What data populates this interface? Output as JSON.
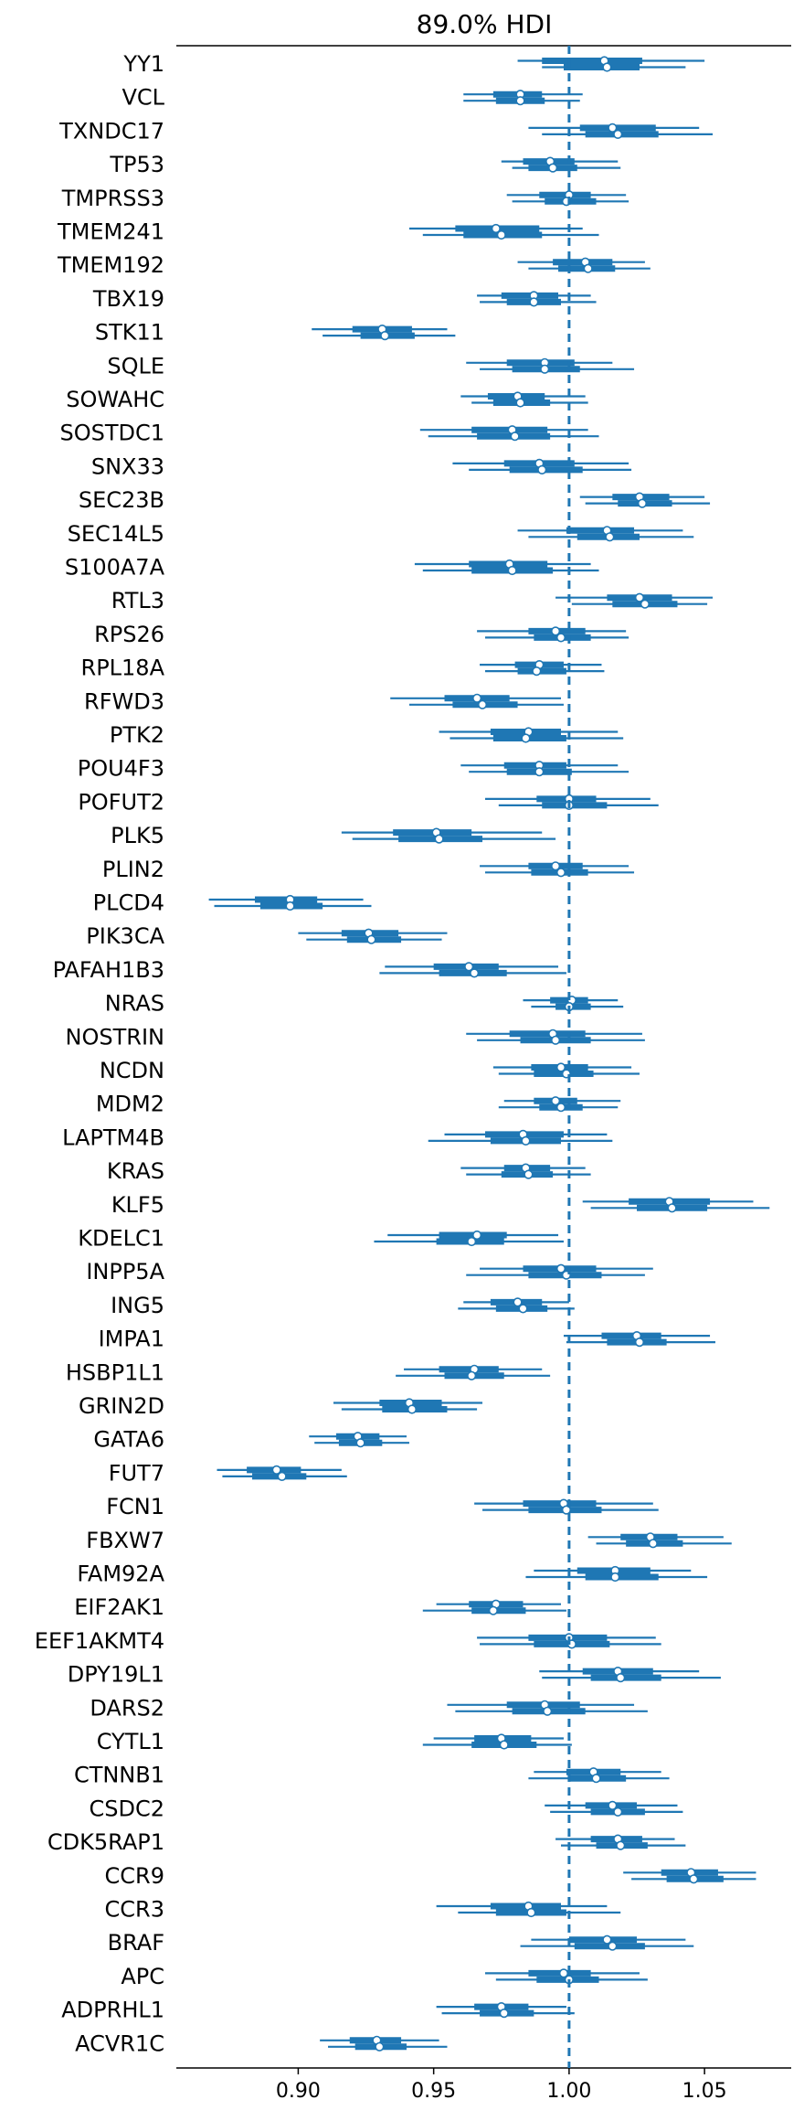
{
  "chart_data": {
    "type": "forest",
    "title": "89.0% HDI",
    "xlim": [
      0.855,
      1.082
    ],
    "xticks": [
      "0.90",
      "0.95",
      "1.00",
      "1.05"
    ],
    "reference_line": 1.0,
    "color": "#1f77b4",
    "rows": [
      {
        "label": "YY1",
        "chains": [
          [
            0.981,
            0.99,
            1.013,
            1.027,
            1.05
          ],
          [
            0.99,
            0.998,
            1.014,
            1.026,
            1.043
          ]
        ]
      },
      {
        "label": "VCL",
        "chains": [
          [
            0.961,
            0.972,
            0.982,
            0.99,
            1.005
          ],
          [
            0.961,
            0.973,
            0.982,
            0.991,
            1.004
          ]
        ]
      },
      {
        "label": "TXNDC17",
        "chains": [
          [
            0.985,
            1.004,
            1.016,
            1.032,
            1.048
          ],
          [
            0.99,
            1.006,
            1.018,
            1.033,
            1.053
          ]
        ]
      },
      {
        "label": "TP53",
        "chains": [
          [
            0.975,
            0.983,
            0.993,
            1.002,
            1.018
          ],
          [
            0.979,
            0.985,
            0.994,
            1.003,
            1.019
          ]
        ]
      },
      {
        "label": "TMPRSS3",
        "chains": [
          [
            0.977,
            0.989,
            1.0,
            1.008,
            1.021
          ],
          [
            0.979,
            0.991,
            0.999,
            1.01,
            1.022
          ]
        ]
      },
      {
        "label": "TMEM241",
        "chains": [
          [
            0.941,
            0.958,
            0.973,
            0.989,
            1.005
          ],
          [
            0.946,
            0.961,
            0.975,
            0.99,
            1.011
          ]
        ]
      },
      {
        "label": "TMEM192",
        "chains": [
          [
            0.981,
            0.994,
            1.006,
            1.016,
            1.028
          ],
          [
            0.985,
            0.996,
            1.007,
            1.017,
            1.03
          ]
        ]
      },
      {
        "label": "TBX19",
        "chains": [
          [
            0.966,
            0.975,
            0.987,
            0.996,
            1.008
          ],
          [
            0.967,
            0.977,
            0.987,
            0.997,
            1.01
          ]
        ]
      },
      {
        "label": "STK11",
        "chains": [
          [
            0.905,
            0.92,
            0.931,
            0.942,
            0.955
          ],
          [
            0.909,
            0.923,
            0.932,
            0.943,
            0.958
          ]
        ]
      },
      {
        "label": "SQLE",
        "chains": [
          [
            0.962,
            0.977,
            0.991,
            1.002,
            1.016
          ],
          [
            0.967,
            0.979,
            0.991,
            1.004,
            1.024
          ]
        ]
      },
      {
        "label": "SOWAHC",
        "chains": [
          [
            0.96,
            0.97,
            0.981,
            0.991,
            1.006
          ],
          [
            0.964,
            0.972,
            0.982,
            0.993,
            1.007
          ]
        ]
      },
      {
        "label": "SOSTDC1",
        "chains": [
          [
            0.945,
            0.964,
            0.979,
            0.992,
            1.007
          ],
          [
            0.948,
            0.966,
            0.98,
            0.993,
            1.011
          ]
        ]
      },
      {
        "label": "SNX33",
        "chains": [
          [
            0.957,
            0.976,
            0.989,
            1.002,
            1.022
          ],
          [
            0.963,
            0.978,
            0.99,
            1.005,
            1.023
          ]
        ]
      },
      {
        "label": "SEC23B",
        "chains": [
          [
            1.004,
            1.016,
            1.026,
            1.037,
            1.05
          ],
          [
            1.006,
            1.018,
            1.027,
            1.038,
            1.052
          ]
        ]
      },
      {
        "label": "SEC14L5",
        "chains": [
          [
            0.981,
            0.999,
            1.014,
            1.024,
            1.042
          ],
          [
            0.985,
            1.003,
            1.015,
            1.026,
            1.046
          ]
        ]
      },
      {
        "label": "S100A7A",
        "chains": [
          [
            0.943,
            0.963,
            0.978,
            0.992,
            1.008
          ],
          [
            0.946,
            0.964,
            0.979,
            0.994,
            1.011
          ]
        ]
      },
      {
        "label": "RTL3",
        "chains": [
          [
            0.995,
            1.014,
            1.026,
            1.038,
            1.053
          ],
          [
            1.001,
            1.016,
            1.028,
            1.04,
            1.051
          ]
        ]
      },
      {
        "label": "RPS26",
        "chains": [
          [
            0.966,
            0.985,
            0.995,
            1.006,
            1.021
          ],
          [
            0.969,
            0.987,
            0.997,
            1.008,
            1.022
          ]
        ]
      },
      {
        "label": "RPL18A",
        "chains": [
          [
            0.967,
            0.98,
            0.989,
            0.998,
            1.012
          ],
          [
            0.969,
            0.981,
            0.988,
            0.999,
            1.013
          ]
        ]
      },
      {
        "label": "RFWD3",
        "chains": [
          [
            0.934,
            0.954,
            0.966,
            0.978,
            0.997
          ],
          [
            0.941,
            0.957,
            0.968,
            0.981,
            0.998
          ]
        ]
      },
      {
        "label": "PTK2",
        "chains": [
          [
            0.952,
            0.971,
            0.985,
            0.997,
            1.018
          ],
          [
            0.956,
            0.972,
            0.984,
            0.999,
            1.02
          ]
        ]
      },
      {
        "label": "POU4F3",
        "chains": [
          [
            0.96,
            0.976,
            0.989,
            0.999,
            1.018
          ],
          [
            0.963,
            0.977,
            0.989,
            1.001,
            1.022
          ]
        ]
      },
      {
        "label": "POFUT2",
        "chains": [
          [
            0.969,
            0.988,
            1.0,
            1.01,
            1.03
          ],
          [
            0.974,
            0.99,
            1.0,
            1.014,
            1.033
          ]
        ]
      },
      {
        "label": "PLK5",
        "chains": [
          [
            0.916,
            0.935,
            0.951,
            0.964,
            0.99
          ],
          [
            0.92,
            0.937,
            0.952,
            0.968,
            0.995
          ]
        ]
      },
      {
        "label": "PLIN2",
        "chains": [
          [
            0.967,
            0.985,
            0.995,
            1.005,
            1.022
          ],
          [
            0.969,
            0.986,
            0.997,
            1.007,
            1.024
          ]
        ]
      },
      {
        "label": "PLCD4",
        "chains": [
          [
            0.867,
            0.884,
            0.897,
            0.907,
            0.924
          ],
          [
            0.869,
            0.886,
            0.897,
            0.909,
            0.927
          ]
        ]
      },
      {
        "label": "PIK3CA",
        "chains": [
          [
            0.9,
            0.916,
            0.926,
            0.937,
            0.955
          ],
          [
            0.903,
            0.918,
            0.927,
            0.938,
            0.953
          ]
        ]
      },
      {
        "label": "PAFAH1B3",
        "chains": [
          [
            0.932,
            0.95,
            0.963,
            0.974,
            0.996
          ],
          [
            0.93,
            0.952,
            0.965,
            0.977,
            0.999
          ]
        ]
      },
      {
        "label": "NRAS",
        "chains": [
          [
            0.983,
            0.993,
            1.001,
            1.007,
            1.018
          ],
          [
            0.986,
            0.995,
            1.0,
            1.008,
            1.02
          ]
        ]
      },
      {
        "label": "NOSTRIN",
        "chains": [
          [
            0.962,
            0.978,
            0.994,
            1.006,
            1.027
          ],
          [
            0.966,
            0.982,
            0.995,
            1.008,
            1.028
          ]
        ]
      },
      {
        "label": "NCDN",
        "chains": [
          [
            0.972,
            0.986,
            0.997,
            1.007,
            1.023
          ],
          [
            0.974,
            0.987,
            0.999,
            1.009,
            1.026
          ]
        ]
      },
      {
        "label": "MDM2",
        "chains": [
          [
            0.976,
            0.987,
            0.995,
            1.003,
            1.019
          ],
          [
            0.974,
            0.989,
            0.997,
            1.005,
            1.018
          ]
        ]
      },
      {
        "label": "LAPTM4B",
        "chains": [
          [
            0.954,
            0.969,
            0.983,
            0.998,
            1.014
          ],
          [
            0.948,
            0.971,
            0.984,
            0.997,
            1.016
          ]
        ]
      },
      {
        "label": "KRAS",
        "chains": [
          [
            0.96,
            0.976,
            0.984,
            0.993,
            1.006
          ],
          [
            0.962,
            0.975,
            0.985,
            0.994,
            1.008
          ]
        ]
      },
      {
        "label": "KLF5",
        "chains": [
          [
            1.005,
            1.022,
            1.037,
            1.052,
            1.068
          ],
          [
            1.008,
            1.025,
            1.038,
            1.051,
            1.074
          ]
        ]
      },
      {
        "label": "KDELC1",
        "chains": [
          [
            0.933,
            0.952,
            0.966,
            0.977,
            0.996
          ],
          [
            0.928,
            0.951,
            0.964,
            0.976,
            0.998
          ]
        ]
      },
      {
        "label": "INPP5A",
        "chains": [
          [
            0.967,
            0.983,
            0.997,
            1.01,
            1.031
          ],
          [
            0.962,
            0.985,
            0.999,
            1.012,
            1.028
          ]
        ]
      },
      {
        "label": "ING5",
        "chains": [
          [
            0.961,
            0.971,
            0.981,
            0.99,
            1.0
          ],
          [
            0.959,
            0.973,
            0.983,
            0.992,
            1.002
          ]
        ]
      },
      {
        "label": "IMPA1",
        "chains": [
          [
            0.998,
            1.012,
            1.025,
            1.034,
            1.052
          ],
          [
            0.999,
            1.014,
            1.026,
            1.036,
            1.054
          ]
        ]
      },
      {
        "label": "HSBP1L1",
        "chains": [
          [
            0.939,
            0.952,
            0.965,
            0.974,
            0.99
          ],
          [
            0.936,
            0.954,
            0.964,
            0.976,
            0.993
          ]
        ]
      },
      {
        "label": "GRIN2D",
        "chains": [
          [
            0.913,
            0.93,
            0.941,
            0.953,
            0.968
          ],
          [
            0.916,
            0.931,
            0.942,
            0.955,
            0.966
          ]
        ]
      },
      {
        "label": "GATA6",
        "chains": [
          [
            0.904,
            0.914,
            0.922,
            0.93,
            0.94
          ],
          [
            0.906,
            0.915,
            0.923,
            0.931,
            0.941
          ]
        ]
      },
      {
        "label": "FUT7",
        "chains": [
          [
            0.87,
            0.881,
            0.892,
            0.901,
            0.916
          ],
          [
            0.872,
            0.883,
            0.894,
            0.903,
            0.918
          ]
        ]
      },
      {
        "label": "FCN1",
        "chains": [
          [
            0.965,
            0.983,
            0.998,
            1.01,
            1.031
          ],
          [
            0.968,
            0.985,
            0.999,
            1.012,
            1.033
          ]
        ]
      },
      {
        "label": "FBXW7",
        "chains": [
          [
            1.007,
            1.019,
            1.03,
            1.04,
            1.057
          ],
          [
            1.01,
            1.021,
            1.031,
            1.042,
            1.06
          ]
        ]
      },
      {
        "label": "FAM92A",
        "chains": [
          [
            0.987,
            1.003,
            1.017,
            1.03,
            1.045
          ],
          [
            0.984,
            1.006,
            1.017,
            1.033,
            1.051
          ]
        ]
      },
      {
        "label": "EIF2AK1",
        "chains": [
          [
            0.951,
            0.963,
            0.973,
            0.983,
            0.997
          ],
          [
            0.946,
            0.964,
            0.972,
            0.984,
            0.999
          ]
        ]
      },
      {
        "label": "EEF1AKMT4",
        "chains": [
          [
            0.966,
            0.985,
            1.0,
            1.014,
            1.032
          ],
          [
            0.967,
            0.987,
            1.001,
            1.015,
            1.034
          ]
        ]
      },
      {
        "label": "DPY19L1",
        "chains": [
          [
            0.989,
            1.005,
            1.018,
            1.031,
            1.048
          ],
          [
            0.99,
            1.008,
            1.019,
            1.034,
            1.056
          ]
        ]
      },
      {
        "label": "DARS2",
        "chains": [
          [
            0.955,
            0.977,
            0.991,
            1.004,
            1.024
          ],
          [
            0.958,
            0.979,
            0.992,
            1.006,
            1.029
          ]
        ]
      },
      {
        "label": "CYTL1",
        "chains": [
          [
            0.95,
            0.965,
            0.975,
            0.986,
            0.998
          ],
          [
            0.946,
            0.964,
            0.976,
            0.988,
            1.001
          ]
        ]
      },
      {
        "label": "CTNNB1",
        "chains": [
          [
            0.987,
            0.999,
            1.009,
            1.019,
            1.034
          ],
          [
            0.985,
            1.0,
            1.01,
            1.021,
            1.037
          ]
        ]
      },
      {
        "label": "CSDC2",
        "chains": [
          [
            0.991,
            1.006,
            1.016,
            1.025,
            1.04
          ],
          [
            0.993,
            1.008,
            1.018,
            1.028,
            1.042
          ]
        ]
      },
      {
        "label": "CDK5RAP1",
        "chains": [
          [
            0.995,
            1.008,
            1.018,
            1.027,
            1.039
          ],
          [
            0.997,
            1.01,
            1.019,
            1.029,
            1.043
          ]
        ]
      },
      {
        "label": "CCR9",
        "chains": [
          [
            1.02,
            1.034,
            1.045,
            1.055,
            1.069
          ],
          [
            1.023,
            1.036,
            1.046,
            1.057,
            1.069
          ]
        ]
      },
      {
        "label": "CCR3",
        "chains": [
          [
            0.951,
            0.971,
            0.985,
            0.997,
            1.014
          ],
          [
            0.959,
            0.973,
            0.986,
            0.999,
            1.019
          ]
        ]
      },
      {
        "label": "BRAF",
        "chains": [
          [
            0.986,
            1.0,
            1.014,
            1.025,
            1.043
          ],
          [
            0.982,
            1.002,
            1.016,
            1.028,
            1.046
          ]
        ]
      },
      {
        "label": "APC",
        "chains": [
          [
            0.969,
            0.985,
            0.998,
            1.008,
            1.026
          ],
          [
            0.973,
            0.988,
            1.0,
            1.011,
            1.029
          ]
        ]
      },
      {
        "label": "ADPRHL1",
        "chains": [
          [
            0.951,
            0.965,
            0.975,
            0.985,
            0.999
          ],
          [
            0.953,
            0.967,
            0.976,
            0.987,
            1.002
          ]
        ]
      },
      {
        "label": "ACVR1C",
        "chains": [
          [
            0.908,
            0.919,
            0.929,
            0.938,
            0.952
          ],
          [
            0.911,
            0.921,
            0.93,
            0.94,
            0.955
          ]
        ]
      }
    ]
  }
}
